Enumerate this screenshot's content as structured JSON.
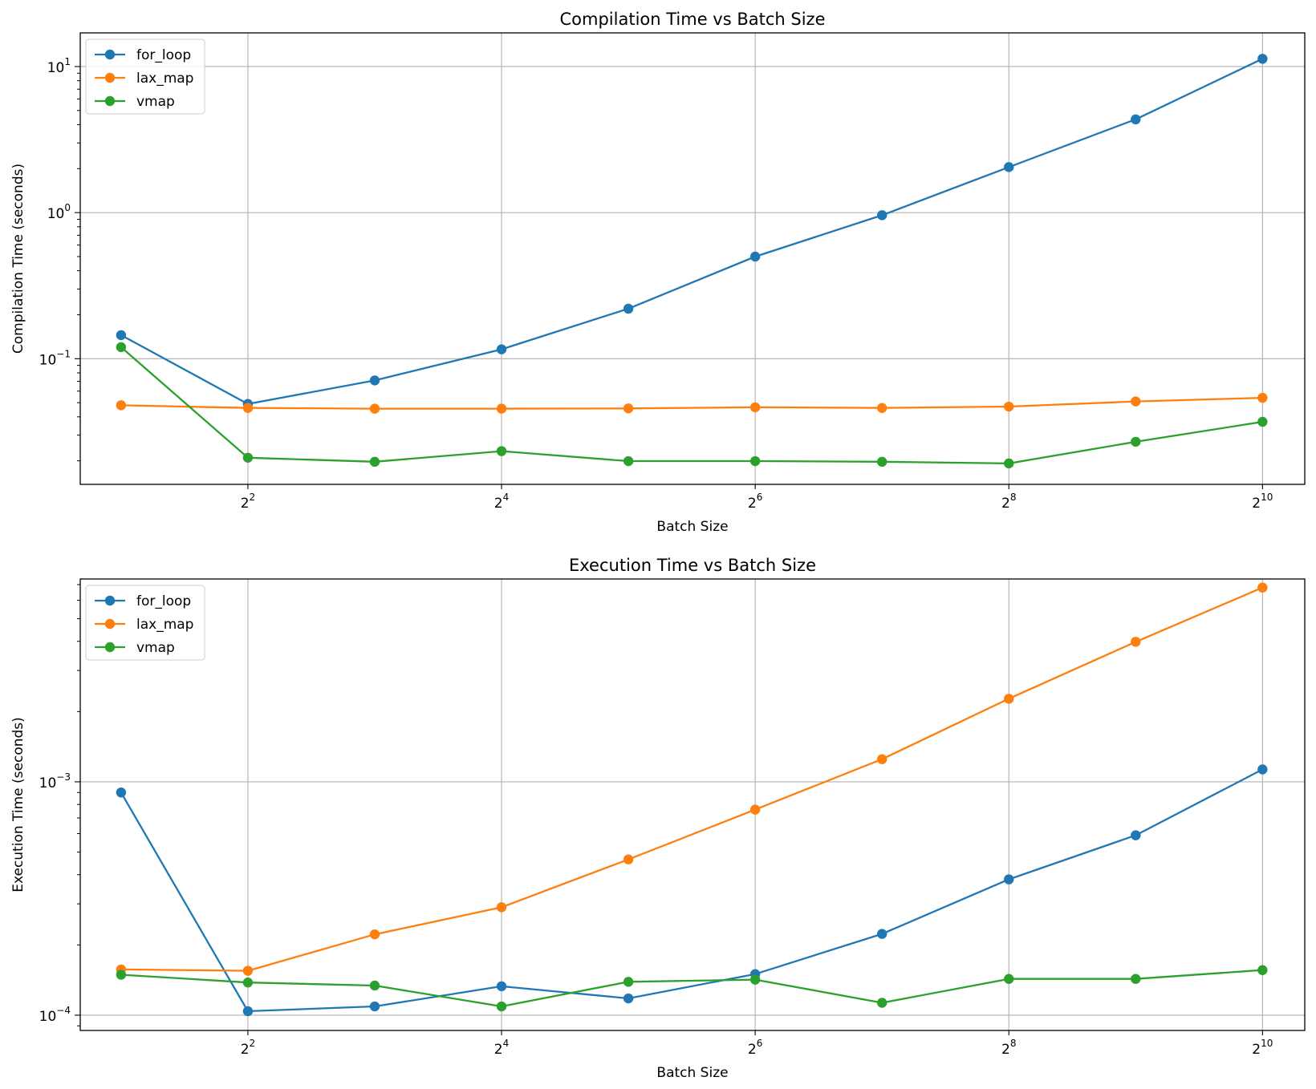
{
  "chart_data": [
    {
      "type": "line",
      "title": "Compilation Time vs Batch Size",
      "xlabel": "Batch Size",
      "ylabel": "Compilation Time (seconds)",
      "xscale": "log2",
      "yscale": "log10",
      "x": [
        2,
        4,
        8,
        16,
        32,
        64,
        128,
        256,
        512,
        1024
      ],
      "xlim": [
        1.6,
        1290
      ],
      "ylim": [
        0.0138,
        17
      ],
      "x_ticks": [
        {
          "base": "2",
          "exp": "2",
          "value": 4
        },
        {
          "base": "2",
          "exp": "4",
          "value": 16
        },
        {
          "base": "2",
          "exp": "6",
          "value": 64
        },
        {
          "base": "2",
          "exp": "8",
          "value": 256
        },
        {
          "base": "2",
          "exp": "10",
          "value": 1024
        }
      ],
      "y_ticks": [
        {
          "base": "10",
          "exp": "−1",
          "value": 0.1
        },
        {
          "base": "10",
          "exp": "0",
          "value": 1
        },
        {
          "base": "10",
          "exp": "1",
          "value": 10
        }
      ],
      "grid": true,
      "legend": "upper-left",
      "series": [
        {
          "name": "for_loop",
          "color": "#1f77b4",
          "values": [
            0.145,
            0.049,
            0.071,
            0.116,
            0.22,
            0.5,
            0.96,
            2.05,
            4.35,
            11.3
          ]
        },
        {
          "name": "lax_map",
          "color": "#ff7f0e",
          "values": [
            0.048,
            0.046,
            0.0455,
            0.0455,
            0.0457,
            0.0465,
            0.046,
            0.047,
            0.051,
            0.054
          ]
        },
        {
          "name": "vmap",
          "color": "#2ca02c",
          "values": [
            0.12,
            0.021,
            0.0197,
            0.0233,
            0.0199,
            0.0199,
            0.0197,
            0.0192,
            0.027,
            0.037
          ]
        }
      ]
    },
    {
      "type": "line",
      "title": "Execution Time vs Batch Size",
      "xlabel": "Batch Size",
      "ylabel": "Execution Time (seconds)",
      "xscale": "log2",
      "yscale": "log10",
      "x": [
        2,
        4,
        8,
        16,
        32,
        64,
        128,
        256,
        512,
        1024
      ],
      "xlim": [
        1.6,
        1290
      ],
      "ylim": [
        8.6e-05,
        0.0074
      ],
      "x_ticks": [
        {
          "base": "2",
          "exp": "2",
          "value": 4
        },
        {
          "base": "2",
          "exp": "4",
          "value": 16
        },
        {
          "base": "2",
          "exp": "6",
          "value": 64
        },
        {
          "base": "2",
          "exp": "8",
          "value": 256
        },
        {
          "base": "2",
          "exp": "10",
          "value": 1024
        }
      ],
      "y_ticks": [
        {
          "base": "10",
          "exp": "−4",
          "value": 0.0001
        },
        {
          "base": "10",
          "exp": "−3",
          "value": 0.001
        }
      ],
      "grid": true,
      "legend": "upper-left",
      "series": [
        {
          "name": "for_loop",
          "color": "#1f77b4",
          "values": [
            0.0009,
            0.000104,
            0.000109,
            0.000133,
            0.000118,
            0.00015,
            0.000223,
            0.000382,
            0.00059,
            0.00113
          ]
        },
        {
          "name": "lax_map",
          "color": "#ff7f0e",
          "values": [
            0.000157,
            0.000155,
            0.000222,
            0.00029,
            0.000465,
            0.00076,
            0.00125,
            0.00227,
            0.00398,
            0.0068
          ]
        },
        {
          "name": "vmap",
          "color": "#2ca02c",
          "values": [
            0.000149,
            0.000138,
            0.000134,
            0.000109,
            0.000139,
            0.000142,
            0.000113,
            0.000143,
            0.000143,
            0.000156
          ]
        }
      ]
    }
  ]
}
